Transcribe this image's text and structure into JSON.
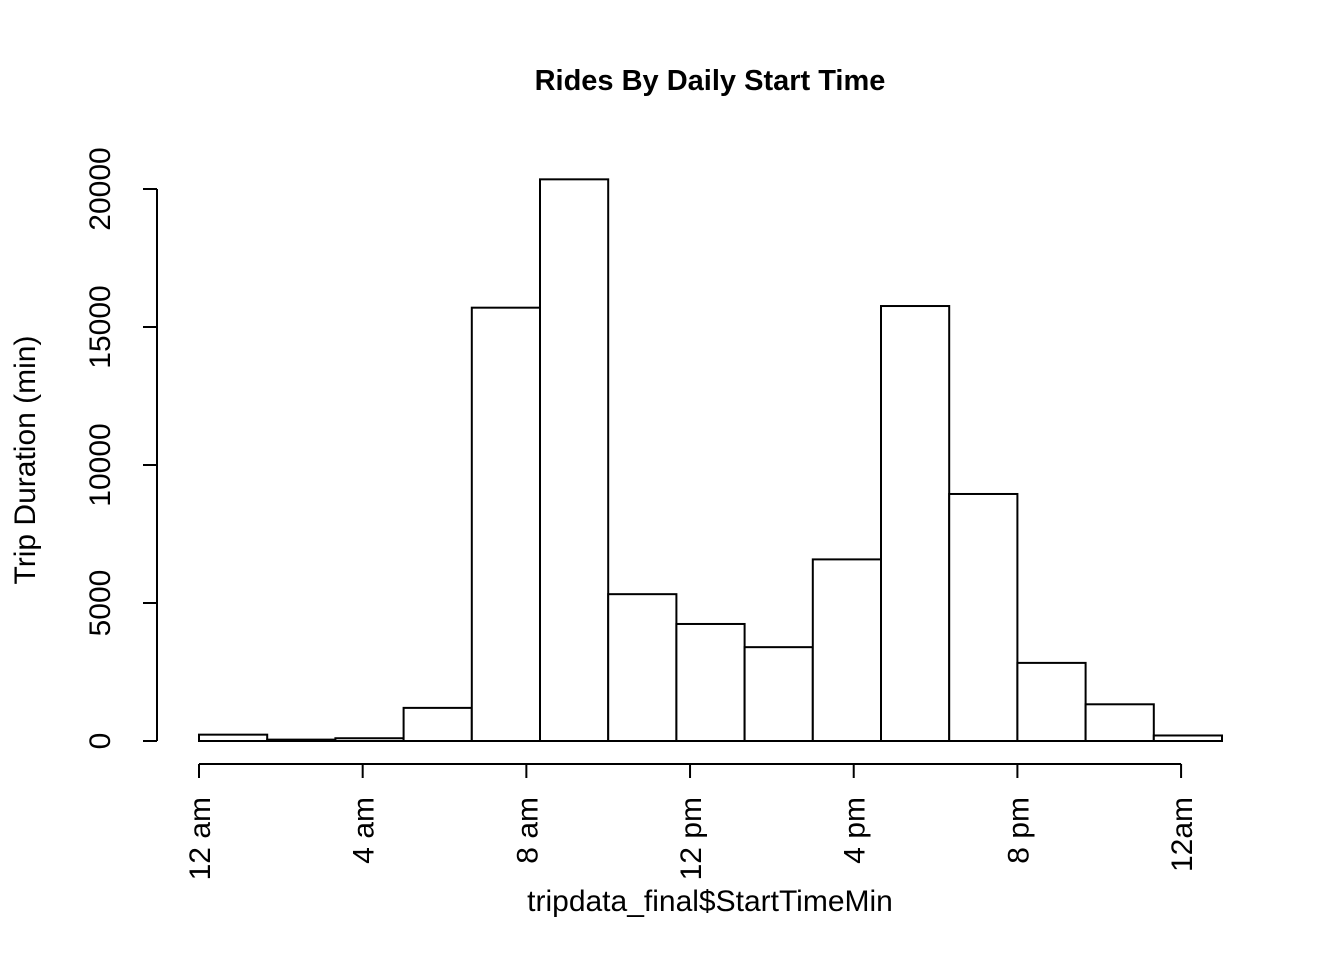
{
  "chart_data": {
    "type": "bar",
    "title": "Rides By Daily Start Time",
    "xlabel": "tripdata_final$StartTimeMin",
    "ylabel": "Trip Duration (min)",
    "x_ticks": [
      {
        "minute": 0,
        "label": "12 am"
      },
      {
        "minute": 240,
        "label": "4 am"
      },
      {
        "minute": 480,
        "label": "8 am"
      },
      {
        "minute": 720,
        "label": "12 pm"
      },
      {
        "minute": 960,
        "label": "4 pm"
      },
      {
        "minute": 1200,
        "label": "8 pm"
      },
      {
        "minute": 1440,
        "label": "12am"
      }
    ],
    "y_ticks": [
      0,
      5000,
      10000,
      15000,
      20000
    ],
    "xlim": [
      0,
      1500
    ],
    "ylim": [
      0,
      20000
    ],
    "bins": [
      {
        "start": 0,
        "end": 100,
        "value": 230
      },
      {
        "start": 100,
        "end": 200,
        "value": 50
      },
      {
        "start": 200,
        "end": 300,
        "value": 100
      },
      {
        "start": 300,
        "end": 400,
        "value": 1200
      },
      {
        "start": 400,
        "end": 500,
        "value": 15700
      },
      {
        "start": 500,
        "end": 600,
        "value": 20350
      },
      {
        "start": 600,
        "end": 700,
        "value": 5320
      },
      {
        "start": 700,
        "end": 800,
        "value": 4240
      },
      {
        "start": 800,
        "end": 900,
        "value": 3400
      },
      {
        "start": 900,
        "end": 1000,
        "value": 6580
      },
      {
        "start": 1000,
        "end": 1100,
        "value": 15760
      },
      {
        "start": 1100,
        "end": 1200,
        "value": 8950
      },
      {
        "start": 1200,
        "end": 1300,
        "value": 2830
      },
      {
        "start": 1300,
        "end": 1400,
        "value": 1330
      },
      {
        "start": 1400,
        "end": 1500,
        "value": 200
      }
    ],
    "bar_fill": "#ffffff",
    "bar_stroke": "#000000",
    "grid": false,
    "legend": "none"
  }
}
